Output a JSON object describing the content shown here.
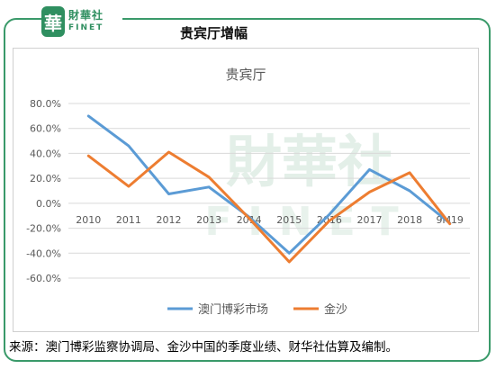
{
  "brand": {
    "badge_char": "華",
    "name_cn": "財華社",
    "name_en": "FINET",
    "watermark_cn": "財華社",
    "watermark_en": "FINET"
  },
  "header": {
    "title": "贵宾厅增幅"
  },
  "source_note": "来源：澳门博彩监察协调局、金沙中国的季度业绩、财华社估算及编制。",
  "colors": {
    "series1": "#5b9bd5",
    "series2": "#ed7d31",
    "frame": "#3a9a6a"
  },
  "chart_data": {
    "type": "line",
    "title": "贵宾厅",
    "categories": [
      "2010",
      "2011",
      "2012",
      "2013",
      "2014",
      "2015",
      "2016",
      "2017",
      "2018",
      "9M19"
    ],
    "series": [
      {
        "name": "澳门博彩市场",
        "values": [
          70.0,
          46.0,
          7.5,
          13.0,
          -11.0,
          -40.0,
          -9.0,
          27.0,
          10.0,
          -16.0
        ]
      },
      {
        "name": "金沙",
        "values": [
          38.0,
          13.5,
          41.0,
          21.0,
          -12.0,
          -47.0,
          -14.0,
          9.0,
          24.5,
          -16.5
        ]
      }
    ],
    "ylim": [
      -60,
      80
    ],
    "yticks": [
      80,
      60,
      40,
      20,
      0,
      -20,
      -40,
      -60
    ],
    "ytick_labels": [
      "80.0%",
      "60.0%",
      "40.0%",
      "20.0%",
      "0.0%",
      "-20.0%",
      "-40.0%",
      "-60.0%"
    ],
    "grid": true,
    "legend": "bottom"
  }
}
